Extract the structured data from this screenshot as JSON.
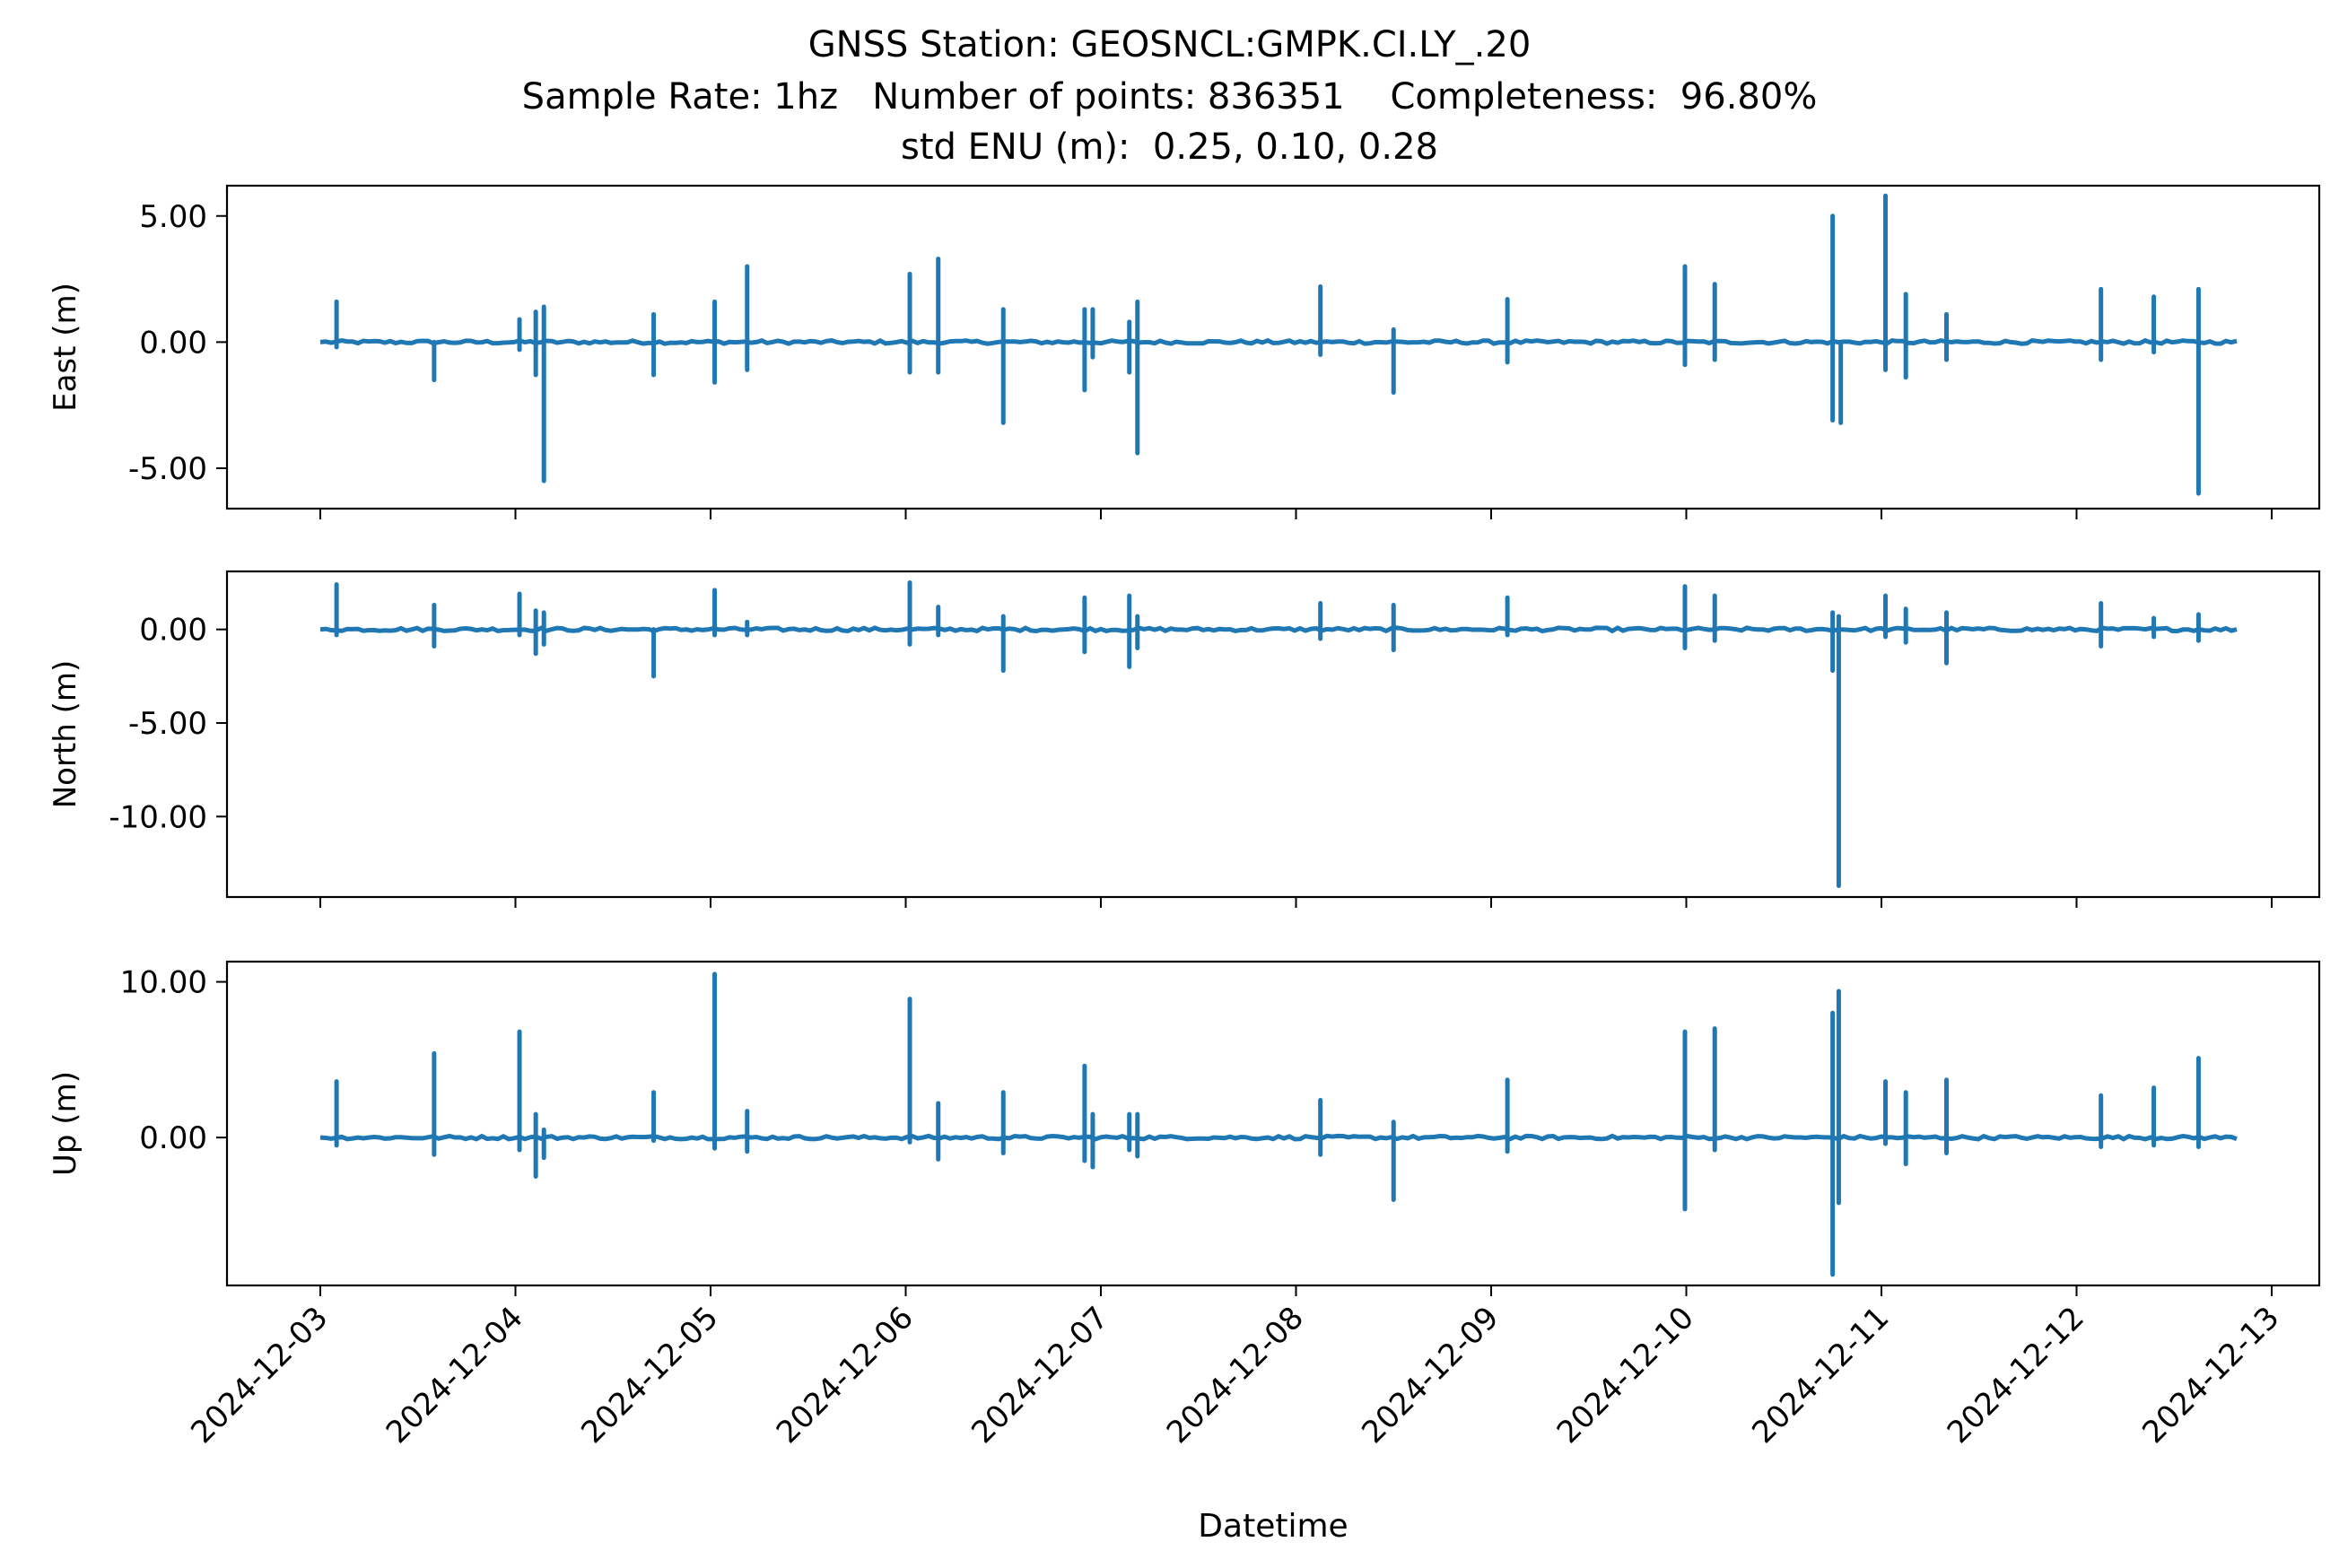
{
  "title": {
    "line1": "GNSS Station: GEOSNCL:GMPK.CI.LY_.20",
    "line2": "Sample Rate: 1hz   Number of points: 836351    Completeness:  96.80%",
    "line3": "std ENU (m):  0.25, 0.10, 0.28"
  },
  "colors": {
    "series": "#1f77b4",
    "axes": "#000000",
    "background": "#ffffff"
  },
  "chart_data": [
    {
      "type": "line",
      "ylabel": "East (m)",
      "xlabel": "",
      "x_range": [
        "2024-12-03T00:00",
        "2024-12-12T20:00"
      ],
      "ylim": [
        -6.6,
        6.2
      ],
      "yticks": [
        5.0,
        0.0,
        -5.0
      ],
      "ytick_labels": [
        "5.00",
        "0.00",
        "-5.00"
      ],
      "xticks": [
        "2024-12-03",
        "2024-12-04",
        "2024-12-05",
        "2024-12-06",
        "2024-12-07",
        "2024-12-08",
        "2024-12-09",
        "2024-12-10",
        "2024-12-11",
        "2024-12-12",
        "2024-12-13"
      ],
      "show_xtick_labels": false,
      "grid": false,
      "baseline": 0.0,
      "spikes": [
        {
          "t": "2024-12-03T02:00",
          "max": 1.6,
          "min": -0.2
        },
        {
          "t": "2024-12-03T14:00",
          "max": 0.0,
          "min": -1.5
        },
        {
          "t": "2024-12-04T00:30",
          "max": 0.9,
          "min": -0.3
        },
        {
          "t": "2024-12-04T02:30",
          "max": 1.2,
          "min": -1.3
        },
        {
          "t": "2024-12-04T03:30",
          "max": 1.4,
          "min": -5.5
        },
        {
          "t": "2024-12-04T17:00",
          "max": 1.1,
          "min": -1.3
        },
        {
          "t": "2024-12-05T00:30",
          "max": 1.6,
          "min": -1.6
        },
        {
          "t": "2024-12-05T04:30",
          "max": 3.0,
          "min": -1.1
        },
        {
          "t": "2024-12-06T00:30",
          "max": 2.7,
          "min": -1.2
        },
        {
          "t": "2024-12-06T04:00",
          "max": 3.3,
          "min": -1.2
        },
        {
          "t": "2024-12-06T12:00",
          "max": 1.3,
          "min": -3.2
        },
        {
          "t": "2024-12-06T22:00",
          "max": 1.3,
          "min": -1.9
        },
        {
          "t": "2024-12-06T23:00",
          "max": 1.3,
          "min": -0.6
        },
        {
          "t": "2024-12-07T03:30",
          "max": 0.8,
          "min": -1.2
        },
        {
          "t": "2024-12-07T04:30",
          "max": 1.6,
          "min": -4.4
        },
        {
          "t": "2024-12-08T03:00",
          "max": 2.2,
          "min": -0.5
        },
        {
          "t": "2024-12-08T12:00",
          "max": 0.5,
          "min": -2.0
        },
        {
          "t": "2024-12-09T02:00",
          "max": 1.7,
          "min": -0.8
        },
        {
          "t": "2024-12-09T23:50",
          "max": 3.0,
          "min": -0.9
        },
        {
          "t": "2024-12-10T03:30",
          "max": 2.3,
          "min": -0.7
        },
        {
          "t": "2024-12-10T18:00",
          "max": 5.0,
          "min": -3.1
        },
        {
          "t": "2024-12-10T19:00",
          "max": 0.0,
          "min": -3.2
        },
        {
          "t": "2024-12-11T00:30",
          "max": 5.8,
          "min": -1.1
        },
        {
          "t": "2024-12-11T03:00",
          "max": 1.9,
          "min": -1.4
        },
        {
          "t": "2024-12-11T08:00",
          "max": 1.1,
          "min": -0.7
        },
        {
          "t": "2024-12-12T03:00",
          "max": 2.1,
          "min": -0.7
        },
        {
          "t": "2024-12-12T09:30",
          "max": 1.8,
          "min": -0.4
        },
        {
          "t": "2024-12-12T15:00",
          "max": 2.1,
          "min": -6.0
        }
      ]
    },
    {
      "type": "line",
      "ylabel": "North (m)",
      "xlabel": "",
      "x_range": [
        "2024-12-03T00:00",
        "2024-12-12T20:00"
      ],
      "ylim": [
        -14.3,
        3.1
      ],
      "yticks": [
        0.0,
        -5.0,
        -10.0
      ],
      "ytick_labels": [
        "0.00",
        "-5.00",
        "-10.00"
      ],
      "xticks": [
        "2024-12-03",
        "2024-12-04",
        "2024-12-05",
        "2024-12-06",
        "2024-12-07",
        "2024-12-08",
        "2024-12-09",
        "2024-12-10",
        "2024-12-11",
        "2024-12-12",
        "2024-12-13"
      ],
      "show_xtick_labels": false,
      "grid": false,
      "baseline": 0.0,
      "spikes": [
        {
          "t": "2024-12-03T02:00",
          "max": 2.4,
          "min": -0.3
        },
        {
          "t": "2024-12-03T14:00",
          "max": 1.3,
          "min": -0.9
        },
        {
          "t": "2024-12-04T00:30",
          "max": 1.9,
          "min": -0.3
        },
        {
          "t": "2024-12-04T02:30",
          "max": 1.0,
          "min": -1.3
        },
        {
          "t": "2024-12-04T03:30",
          "max": 0.9,
          "min": -0.8
        },
        {
          "t": "2024-12-04T17:00",
          "max": 0.0,
          "min": -2.5
        },
        {
          "t": "2024-12-05T00:30",
          "max": 2.1,
          "min": -0.3
        },
        {
          "t": "2024-12-05T04:30",
          "max": 0.4,
          "min": -0.3
        },
        {
          "t": "2024-12-06T00:30",
          "max": 2.5,
          "min": -0.8
        },
        {
          "t": "2024-12-06T04:00",
          "max": 1.2,
          "min": -0.3
        },
        {
          "t": "2024-12-06T12:00",
          "max": 0.7,
          "min": -2.2
        },
        {
          "t": "2024-12-06T22:00",
          "max": 1.7,
          "min": -1.2
        },
        {
          "t": "2024-12-07T03:30",
          "max": 1.8,
          "min": -2.0
        },
        {
          "t": "2024-12-07T04:30",
          "max": 0.7,
          "min": -1.0
        },
        {
          "t": "2024-12-08T03:00",
          "max": 1.4,
          "min": -0.5
        },
        {
          "t": "2024-12-08T12:00",
          "max": 1.3,
          "min": -1.1
        },
        {
          "t": "2024-12-09T02:00",
          "max": 1.7,
          "min": -0.3
        },
        {
          "t": "2024-12-09T23:50",
          "max": 2.3,
          "min": -1.0
        },
        {
          "t": "2024-12-10T03:30",
          "max": 1.8,
          "min": -0.6
        },
        {
          "t": "2024-12-10T18:00",
          "max": 0.9,
          "min": -2.2
        },
        {
          "t": "2024-12-10T18:45",
          "max": 0.7,
          "min": -13.7
        },
        {
          "t": "2024-12-11T00:30",
          "max": 1.8,
          "min": -0.4
        },
        {
          "t": "2024-12-11T03:00",
          "max": 1.1,
          "min": -0.7
        },
        {
          "t": "2024-12-11T08:00",
          "max": 0.9,
          "min": -1.8
        },
        {
          "t": "2024-12-12T03:00",
          "max": 1.4,
          "min": -0.9
        },
        {
          "t": "2024-12-12T09:30",
          "max": 0.6,
          "min": -0.4
        },
        {
          "t": "2024-12-12T15:00",
          "max": 0.8,
          "min": -0.6
        }
      ]
    },
    {
      "type": "line",
      "ylabel": "Up (m)",
      "xlabel": "Datetime",
      "x_range": [
        "2024-12-03T00:00",
        "2024-12-12T20:00"
      ],
      "ylim": [
        -9.5,
        11.3
      ],
      "yticks": [
        10.0,
        0.0
      ],
      "ytick_labels": [
        "10.00",
        "0.00"
      ],
      "xticks": [
        "2024-12-03",
        "2024-12-04",
        "2024-12-05",
        "2024-12-06",
        "2024-12-07",
        "2024-12-08",
        "2024-12-09",
        "2024-12-10",
        "2024-12-11",
        "2024-12-12",
        "2024-12-13"
      ],
      "show_xtick_labels": true,
      "grid": false,
      "baseline": 0.0,
      "spikes": [
        {
          "t": "2024-12-03T02:00",
          "max": 3.6,
          "min": -0.5
        },
        {
          "t": "2024-12-03T14:00",
          "max": 5.4,
          "min": -1.1
        },
        {
          "t": "2024-12-04T00:30",
          "max": 6.8,
          "min": -0.8
        },
        {
          "t": "2024-12-04T02:30",
          "max": 1.5,
          "min": -2.5
        },
        {
          "t": "2024-12-04T03:30",
          "max": 0.5,
          "min": -1.3
        },
        {
          "t": "2024-12-04T17:00",
          "max": 2.9,
          "min": -0.2
        },
        {
          "t": "2024-12-05T00:30",
          "max": 10.5,
          "min": -0.7
        },
        {
          "t": "2024-12-05T04:30",
          "max": 1.7,
          "min": -0.9
        },
        {
          "t": "2024-12-06T00:30",
          "max": 8.9,
          "min": -0.3
        },
        {
          "t": "2024-12-06T04:00",
          "max": 2.2,
          "min": -1.4
        },
        {
          "t": "2024-12-06T12:00",
          "max": 2.9,
          "min": -1.0
        },
        {
          "t": "2024-12-06T22:00",
          "max": 4.6,
          "min": -1.5
        },
        {
          "t": "2024-12-06T23:00",
          "max": 1.5,
          "min": -1.9
        },
        {
          "t": "2024-12-07T03:30",
          "max": 1.5,
          "min": -0.8
        },
        {
          "t": "2024-12-07T04:30",
          "max": 1.5,
          "min": -1.2
        },
        {
          "t": "2024-12-08T03:00",
          "max": 2.4,
          "min": -1.1
        },
        {
          "t": "2024-12-08T12:00",
          "max": 1.0,
          "min": -4.0
        },
        {
          "t": "2024-12-09T02:00",
          "max": 3.7,
          "min": -0.9
        },
        {
          "t": "2024-12-09T23:50",
          "max": 6.8,
          "min": -4.6
        },
        {
          "t": "2024-12-10T03:30",
          "max": 7.0,
          "min": -0.8
        },
        {
          "t": "2024-12-10T18:00",
          "max": 8.0,
          "min": -8.8
        },
        {
          "t": "2024-12-10T18:45",
          "max": 9.4,
          "min": -4.2
        },
        {
          "t": "2024-12-11T00:30",
          "max": 3.6,
          "min": -0.4
        },
        {
          "t": "2024-12-11T03:00",
          "max": 2.9,
          "min": -1.7
        },
        {
          "t": "2024-12-11T08:00",
          "max": 3.7,
          "min": -1.0
        },
        {
          "t": "2024-12-12T03:00",
          "max": 2.7,
          "min": -0.6
        },
        {
          "t": "2024-12-12T09:30",
          "max": 3.2,
          "min": -0.5
        },
        {
          "t": "2024-12-12T15:00",
          "max": 5.1,
          "min": -0.6
        }
      ]
    }
  ]
}
